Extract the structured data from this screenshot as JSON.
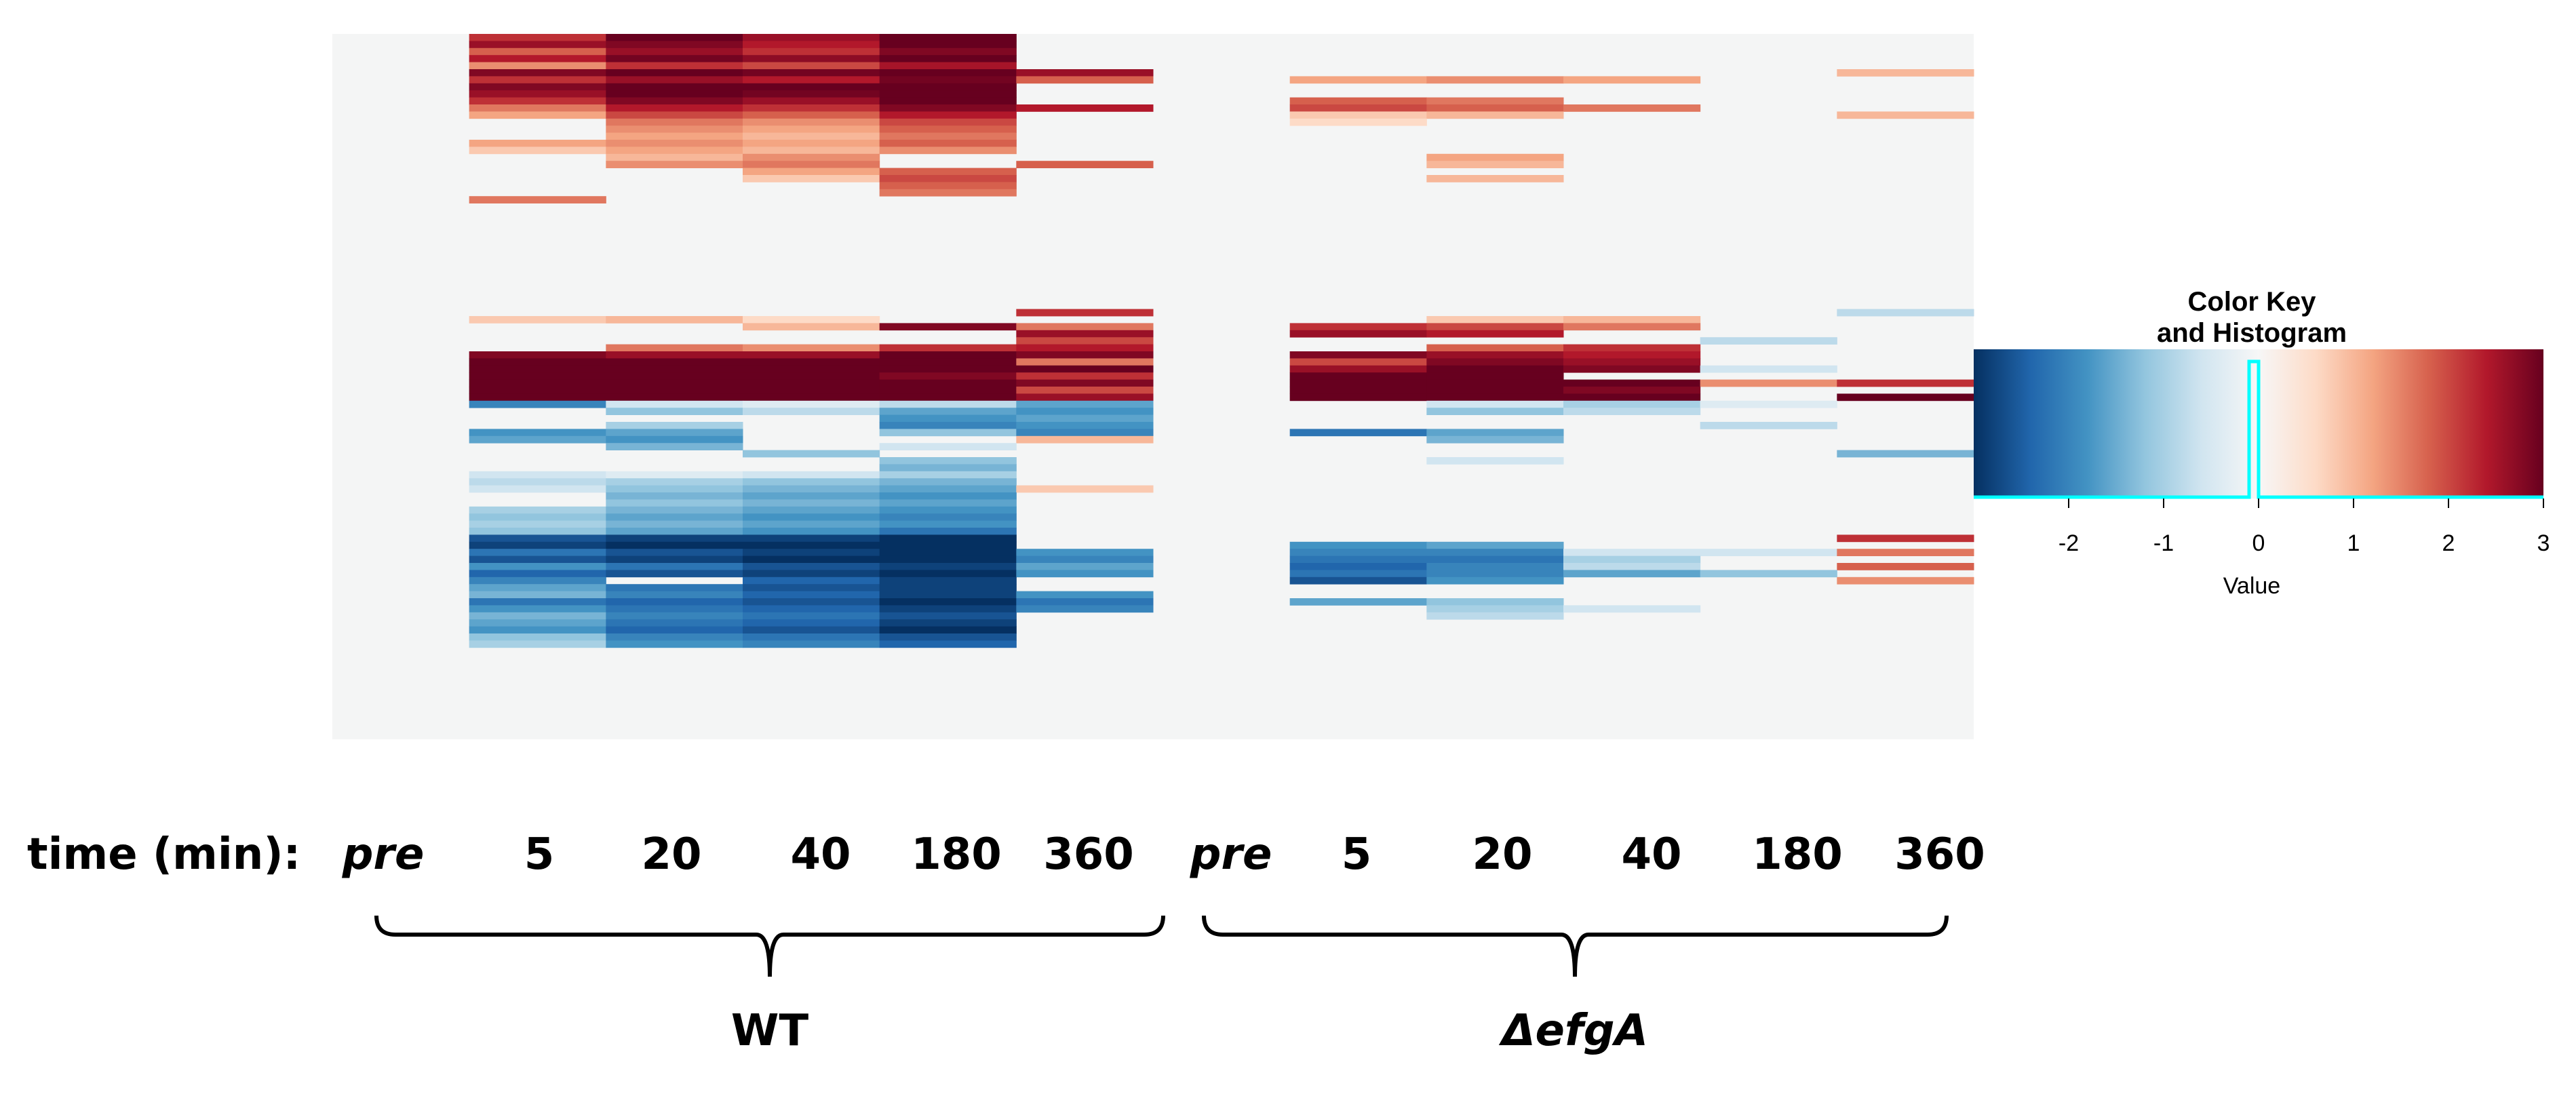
{
  "chart_data": {
    "type": "heatmap",
    "value_range": [
      -3,
      3
    ],
    "colormap": [
      "#053061",
      "#2166ac",
      "#4393c3",
      "#92c5de",
      "#d1e5f0",
      "#f7f7f7",
      "#fddbc7",
      "#f4a582",
      "#d6604d",
      "#b2182b",
      "#67001f"
    ],
    "x_axis_prefix": "time (min):",
    "columns": [
      {
        "group": "WT",
        "time": "pre"
      },
      {
        "group": "WT",
        "time": "5"
      },
      {
        "group": "WT",
        "time": "20"
      },
      {
        "group": "WT",
        "time": "40"
      },
      {
        "group": "WT",
        "time": "180"
      },
      {
        "group": "WT",
        "time": "360"
      },
      {
        "group": "ΔefgA",
        "time": "pre"
      },
      {
        "group": "ΔefgA",
        "time": "5"
      },
      {
        "group": "ΔefgA",
        "time": "20"
      },
      {
        "group": "ΔefgA",
        "time": "40"
      },
      {
        "group": "ΔefgA",
        "time": "180"
      },
      {
        "group": "ΔefgA",
        "time": "360"
      }
    ],
    "groups": [
      {
        "name": "WT",
        "italic": false
      },
      {
        "name": "ΔefgA",
        "italic": true
      }
    ],
    "rows_total": 100,
    "row_blocks": [
      {
        "r0": 0,
        "r1": 1,
        "v": [
          0,
          2.2,
          3,
          2.6,
          3,
          0,
          0,
          0,
          0,
          0,
          0,
          0
        ]
      },
      {
        "r0": 1,
        "r1": 2,
        "v": [
          0,
          2.6,
          2.8,
          2.4,
          3,
          0,
          0,
          0,
          0,
          0,
          0,
          0
        ]
      },
      {
        "r0": 2,
        "r1": 3,
        "v": [
          0,
          1.8,
          2.6,
          2.2,
          2.8,
          0,
          0,
          0,
          0,
          0,
          0,
          0
        ]
      },
      {
        "r0": 3,
        "r1": 4,
        "v": [
          0,
          2.4,
          2.9,
          2.7,
          3,
          0,
          0,
          0,
          0,
          0,
          0,
          0
        ]
      },
      {
        "r0": 4,
        "r1": 5,
        "v": [
          0,
          1.4,
          2.2,
          2.0,
          2.5,
          0,
          0,
          0,
          0,
          0,
          0,
          0
        ]
      },
      {
        "r0": 5,
        "r1": 6,
        "v": [
          0,
          2.8,
          3,
          2.9,
          3,
          2.6,
          0,
          0,
          0,
          0,
          0,
          1.0
        ]
      },
      {
        "r0": 6,
        "r1": 7,
        "v": [
          0,
          2.2,
          2.6,
          2.4,
          2.9,
          1.8,
          0,
          1.2,
          1.4,
          1.2,
          0,
          0
        ]
      },
      {
        "r0": 7,
        "r1": 8,
        "v": [
          0,
          2.8,
          3,
          3,
          3,
          0,
          0,
          0,
          0,
          0,
          0,
          0
        ]
      },
      {
        "r0": 8,
        "r1": 9,
        "v": [
          0,
          2.6,
          3,
          2.9,
          3,
          0,
          0,
          0,
          0,
          0,
          0,
          0
        ]
      },
      {
        "r0": 9,
        "r1": 10,
        "v": [
          0,
          2.2,
          2.8,
          2.6,
          3,
          0,
          0,
          1.8,
          1.6,
          0,
          0,
          0
        ]
      },
      {
        "r0": 10,
        "r1": 11,
        "v": [
          0,
          1.6,
          2.4,
          2.2,
          2.8,
          2.4,
          0,
          2.0,
          1.8,
          1.6,
          0,
          0
        ]
      },
      {
        "r0": 11,
        "r1": 12,
        "v": [
          0,
          1.2,
          2.0,
          1.8,
          2.4,
          0,
          0,
          0.8,
          1.0,
          0,
          0,
          1.0
        ]
      },
      {
        "r0": 12,
        "r1": 13,
        "v": [
          0,
          0,
          1.6,
          1.4,
          2.0,
          0,
          0,
          0.6,
          0,
          0,
          0,
          0
        ]
      },
      {
        "r0": 13,
        "r1": 14,
        "v": [
          0,
          0,
          1.4,
          1.2,
          1.8,
          0,
          0,
          0,
          0,
          0,
          0,
          0
        ]
      },
      {
        "r0": 14,
        "r1": 15,
        "v": [
          0,
          0,
          1.2,
          1.0,
          1.6,
          0,
          0,
          0,
          0,
          0,
          0,
          0
        ]
      },
      {
        "r0": 15,
        "r1": 16,
        "v": [
          0,
          1.2,
          1.4,
          1.2,
          1.8,
          0,
          0,
          0,
          0,
          0,
          0,
          0
        ]
      },
      {
        "r0": 16,
        "r1": 17,
        "v": [
          0,
          0.8,
          1.2,
          1.0,
          1.4,
          0,
          0,
          0,
          0,
          0,
          0,
          0
        ]
      },
      {
        "r0": 17,
        "r1": 18,
        "v": [
          0,
          0,
          1.0,
          1.4,
          0,
          0,
          0,
          0,
          1.2,
          0,
          0,
          0
        ]
      },
      {
        "r0": 18,
        "r1": 19,
        "v": [
          0,
          0,
          1.4,
          1.6,
          0,
          1.8,
          0,
          0,
          1.0,
          0,
          0,
          0
        ]
      },
      {
        "r0": 19,
        "r1": 20,
        "v": [
          0,
          0,
          0,
          1.2,
          1.8,
          0,
          0,
          0,
          0,
          0,
          0,
          0
        ]
      },
      {
        "r0": 20,
        "r1": 21,
        "v": [
          0,
          0,
          0,
          0.8,
          2.0,
          0,
          0,
          0,
          1.0,
          0,
          0,
          0
        ]
      },
      {
        "r0": 21,
        "r1": 22,
        "v": [
          0,
          0,
          0,
          0,
          1.8,
          0,
          0,
          0,
          0,
          0,
          0,
          0
        ]
      },
      {
        "r0": 22,
        "r1": 23,
        "v": [
          0,
          0,
          0,
          0,
          1.6,
          0,
          0,
          0,
          0,
          0,
          0,
          0
        ]
      },
      {
        "r0": 23,
        "r1": 24,
        "v": [
          0,
          1.6,
          0,
          0,
          0,
          0,
          0,
          0,
          0,
          0,
          0,
          0
        ]
      },
      {
        "r0": 24,
        "r1": 39,
        "v": [
          0,
          0,
          0,
          0,
          0,
          0,
          0,
          0,
          0,
          0,
          0,
          0
        ]
      },
      {
        "r0": 39,
        "r1": 40,
        "v": [
          0,
          0,
          0,
          0,
          0,
          2.2,
          0,
          0,
          0,
          0,
          0,
          -0.8
        ]
      },
      {
        "r0": 40,
        "r1": 41,
        "v": [
          0,
          0.8,
          1.0,
          0.6,
          0,
          0,
          0,
          0,
          0.8,
          1.0,
          0,
          0
        ]
      },
      {
        "r0": 41,
        "r1": 42,
        "v": [
          0,
          0,
          0,
          1.0,
          2.8,
          1.6,
          0,
          2.2,
          2.0,
          1.6,
          0,
          0
        ]
      },
      {
        "r0": 42,
        "r1": 43,
        "v": [
          0,
          0,
          0,
          0,
          0,
          2.6,
          0,
          2.6,
          2.4,
          0,
          0,
          0
        ]
      },
      {
        "r0": 43,
        "r1": 44,
        "v": [
          0,
          0,
          0,
          0,
          0,
          2.0,
          0,
          0,
          0,
          0,
          -0.8,
          0
        ]
      },
      {
        "r0": 44,
        "r1": 45,
        "v": [
          0,
          0,
          1.6,
          1.4,
          2.2,
          2.4,
          0,
          0,
          1.8,
          2.2,
          0,
          0
        ]
      },
      {
        "r0": 45,
        "r1": 46,
        "v": [
          0,
          2.8,
          2.6,
          2.6,
          3,
          2.8,
          0,
          2.8,
          2.6,
          2.4,
          0,
          0
        ]
      },
      {
        "r0": 46,
        "r1": 47,
        "v": [
          0,
          3,
          3,
          3,
          3,
          1.6,
          0,
          2.0,
          2.8,
          2.6,
          0,
          0
        ]
      },
      {
        "r0": 47,
        "r1": 48,
        "v": [
          0,
          3,
          3,
          3,
          3,
          3,
          0,
          2.6,
          3,
          2.8,
          -0.6,
          0
        ]
      },
      {
        "r0": 48,
        "r1": 49,
        "v": [
          0,
          3,
          3,
          3,
          2.8,
          2.2,
          0,
          3,
          3,
          0,
          0,
          0
        ]
      },
      {
        "r0": 49,
        "r1": 50,
        "v": [
          0,
          3,
          3,
          3,
          3,
          2.8,
          0,
          3,
          3,
          3,
          1.4,
          2.2
        ]
      },
      {
        "r0": 50,
        "r1": 51,
        "v": [
          0,
          3,
          3,
          3,
          3,
          2.0,
          0,
          3,
          3,
          2.8,
          0,
          0
        ]
      },
      {
        "r0": 51,
        "r1": 52,
        "v": [
          0,
          3,
          3,
          3,
          3,
          2.6,
          0,
          3,
          3,
          3,
          0,
          3
        ]
      },
      {
        "r0": 52,
        "r1": 53,
        "v": [
          0,
          -2.0,
          -0.6,
          -0.4,
          -0.8,
          -1.6,
          0,
          0,
          -0.6,
          -1.0,
          -0.4,
          0
        ]
      },
      {
        "r0": 53,
        "r1": 54,
        "v": [
          0,
          0,
          -1.2,
          -0.8,
          -1.6,
          -1.8,
          0,
          0,
          -1.2,
          -0.8,
          0,
          0
        ]
      },
      {
        "r0": 54,
        "r1": 55,
        "v": [
          0,
          0,
          0,
          0,
          -1.8,
          -1.6,
          0,
          0,
          0,
          0,
          0,
          0
        ]
      },
      {
        "r0": 55,
        "r1": 56,
        "v": [
          0,
          0,
          -1.0,
          0,
          -2.0,
          -1.8,
          0,
          0,
          0,
          0,
          -0.8,
          0
        ]
      },
      {
        "r0": 56,
        "r1": 57,
        "v": [
          0,
          -1.8,
          -1.6,
          0,
          -1.2,
          -2.0,
          0,
          -2.2,
          -1.6,
          0,
          0,
          0
        ]
      },
      {
        "r0": 57,
        "r1": 58,
        "v": [
          0,
          -1.6,
          -1.8,
          0,
          0,
          1.0,
          0,
          0,
          -1.4,
          0,
          0,
          0
        ]
      },
      {
        "r0": 58,
        "r1": 59,
        "v": [
          0,
          0,
          -1.4,
          0,
          -0.6,
          0,
          0,
          0,
          0,
          0,
          0,
          0
        ]
      },
      {
        "r0": 59,
        "r1": 60,
        "v": [
          0,
          0,
          0,
          -1.2,
          0,
          0,
          0,
          0,
          0,
          0,
          0,
          -1.4
        ]
      },
      {
        "r0": 60,
        "r1": 61,
        "v": [
          0,
          0,
          0,
          0,
          -1.2,
          0,
          0,
          0,
          -0.6,
          0,
          0,
          0
        ]
      },
      {
        "r0": 61,
        "r1": 62,
        "v": [
          0,
          0,
          0,
          0,
          -1.4,
          0,
          0,
          0,
          0,
          0,
          0,
          0
        ]
      },
      {
        "r0": 62,
        "r1": 63,
        "v": [
          0,
          -0.6,
          -0.4,
          -0.6,
          -1.0,
          0,
          0,
          0,
          0,
          0,
          0,
          0
        ]
      },
      {
        "r0": 63,
        "r1": 64,
        "v": [
          0,
          -0.8,
          -1.0,
          -1.2,
          -1.4,
          0,
          0,
          0,
          0,
          0,
          0,
          0
        ]
      },
      {
        "r0": 64,
        "r1": 65,
        "v": [
          0,
          -0.6,
          -1.2,
          -1.4,
          -1.6,
          0.8,
          0,
          0,
          0,
          0,
          0,
          0
        ]
      },
      {
        "r0": 65,
        "r1": 66,
        "v": [
          0,
          0,
          -1.4,
          -1.6,
          -1.8,
          0,
          0,
          0,
          0,
          0,
          0,
          0
        ]
      },
      {
        "r0": 66,
        "r1": 67,
        "v": [
          0,
          0,
          -1.2,
          -1.4,
          -1.6,
          0,
          0,
          0,
          0,
          0,
          0,
          0
        ]
      },
      {
        "r0": 67,
        "r1": 68,
        "v": [
          0,
          -1.0,
          -1.4,
          -1.6,
          -1.8,
          0,
          0,
          0,
          0,
          0,
          0,
          0
        ]
      },
      {
        "r0": 68,
        "r1": 69,
        "v": [
          0,
          -1.2,
          -1.6,
          -1.8,
          -2.0,
          0,
          0,
          0,
          0,
          0,
          0,
          0
        ]
      },
      {
        "r0": 69,
        "r1": 70,
        "v": [
          0,
          -1.0,
          -1.4,
          -1.6,
          -1.8,
          0,
          0,
          0,
          0,
          0,
          0,
          0
        ]
      },
      {
        "r0": 70,
        "r1": 71,
        "v": [
          0,
          -1.2,
          -1.6,
          -1.8,
          -2.2,
          0,
          0,
          0,
          0,
          0,
          0,
          0
        ]
      },
      {
        "r0": 71,
        "r1": 72,
        "v": [
          0,
          -2.6,
          -2.8,
          -2.8,
          -3,
          0,
          0,
          0,
          0,
          0,
          0,
          2.2
        ]
      },
      {
        "r0": 72,
        "r1": 73,
        "v": [
          0,
          -2.8,
          -3,
          -3,
          -3,
          0,
          0,
          -1.8,
          -1.6,
          0,
          0,
          0
        ]
      },
      {
        "r0": 73,
        "r1": 74,
        "v": [
          0,
          -2.2,
          -2.6,
          -2.8,
          -3,
          -1.8,
          0,
          -2.0,
          -2.0,
          -0.6,
          -0.6,
          1.6
        ]
      },
      {
        "r0": 74,
        "r1": 75,
        "v": [
          0,
          -2.6,
          -2.8,
          -3,
          -3,
          -2.0,
          0,
          -2.2,
          -2.2,
          -1.0,
          0,
          0
        ]
      },
      {
        "r0": 75,
        "r1": 76,
        "v": [
          0,
          -1.8,
          -2.2,
          -2.6,
          -2.8,
          -1.6,
          0,
          -2.4,
          -2.0,
          -0.8,
          0,
          1.8
        ]
      },
      {
        "r0": 76,
        "r1": 77,
        "v": [
          0,
          -2.4,
          -2.6,
          -2.8,
          -3,
          -1.8,
          0,
          -2.2,
          -2.0,
          -1.6,
          -1.2,
          0
        ]
      },
      {
        "r0": 77,
        "r1": 78,
        "v": [
          0,
          -2.0,
          0,
          -2.4,
          -2.8,
          0,
          0,
          -2.6,
          -1.8,
          0,
          0,
          1.4
        ]
      },
      {
        "r0": 78,
        "r1": 79,
        "v": [
          0,
          -1.6,
          -2.2,
          -2.6,
          -2.8,
          0,
          0,
          0,
          0,
          0,
          0,
          0
        ]
      },
      {
        "r0": 79,
        "r1": 80,
        "v": [
          0,
          -1.4,
          -2.0,
          -2.4,
          -2.8,
          -1.8,
          0,
          0,
          0,
          0,
          0,
          0
        ]
      },
      {
        "r0": 80,
        "r1": 81,
        "v": [
          0,
          -2.2,
          -2.4,
          -2.6,
          -3,
          -2.2,
          0,
          -1.6,
          -1.2,
          0,
          0,
          0
        ]
      },
      {
        "r0": 81,
        "r1": 82,
        "v": [
          0,
          -1.8,
          -2.2,
          -2.4,
          -2.8,
          -2.0,
          0,
          0,
          -1.0,
          -0.6,
          0,
          0
        ]
      },
      {
        "r0": 82,
        "r1": 83,
        "v": [
          0,
          -1.4,
          -2.0,
          -2.2,
          -2.6,
          0,
          0,
          0,
          -0.8,
          0,
          0,
          0
        ]
      },
      {
        "r0": 83,
        "r1": 84,
        "v": [
          0,
          -1.6,
          -2.2,
          -2.4,
          -2.8,
          0,
          0,
          0,
          0,
          0,
          0,
          0
        ]
      },
      {
        "r0": 84,
        "r1": 85,
        "v": [
          0,
          -1.8,
          -2.4,
          -2.6,
          -3,
          0,
          0,
          0,
          0,
          0,
          0,
          0
        ]
      },
      {
        "r0": 85,
        "r1": 86,
        "v": [
          0,
          -1.2,
          -2.0,
          -2.2,
          -2.6,
          0,
          0,
          0,
          0,
          0,
          0,
          0
        ]
      },
      {
        "r0": 86,
        "r1": 87,
        "v": [
          0,
          -1.0,
          -1.8,
          -2.0,
          -2.4,
          0,
          0,
          0,
          0,
          0,
          0,
          0
        ]
      },
      {
        "r0": 87,
        "r1": 100,
        "v": [
          0,
          0,
          0,
          0,
          0,
          0,
          0,
          0,
          0,
          0,
          0,
          0
        ]
      }
    ],
    "color_key": {
      "title_line1": "Color Key",
      "title_line2": "and Histogram",
      "xlabel": "Value",
      "ticks": [
        "-2",
        "-1",
        "0",
        "1",
        "2",
        "3"
      ],
      "tick_values": [
        -2,
        -1,
        0,
        1,
        2,
        3
      ],
      "histogram_peak_value": -0.05,
      "histogram_color": "#00ffff"
    }
  }
}
